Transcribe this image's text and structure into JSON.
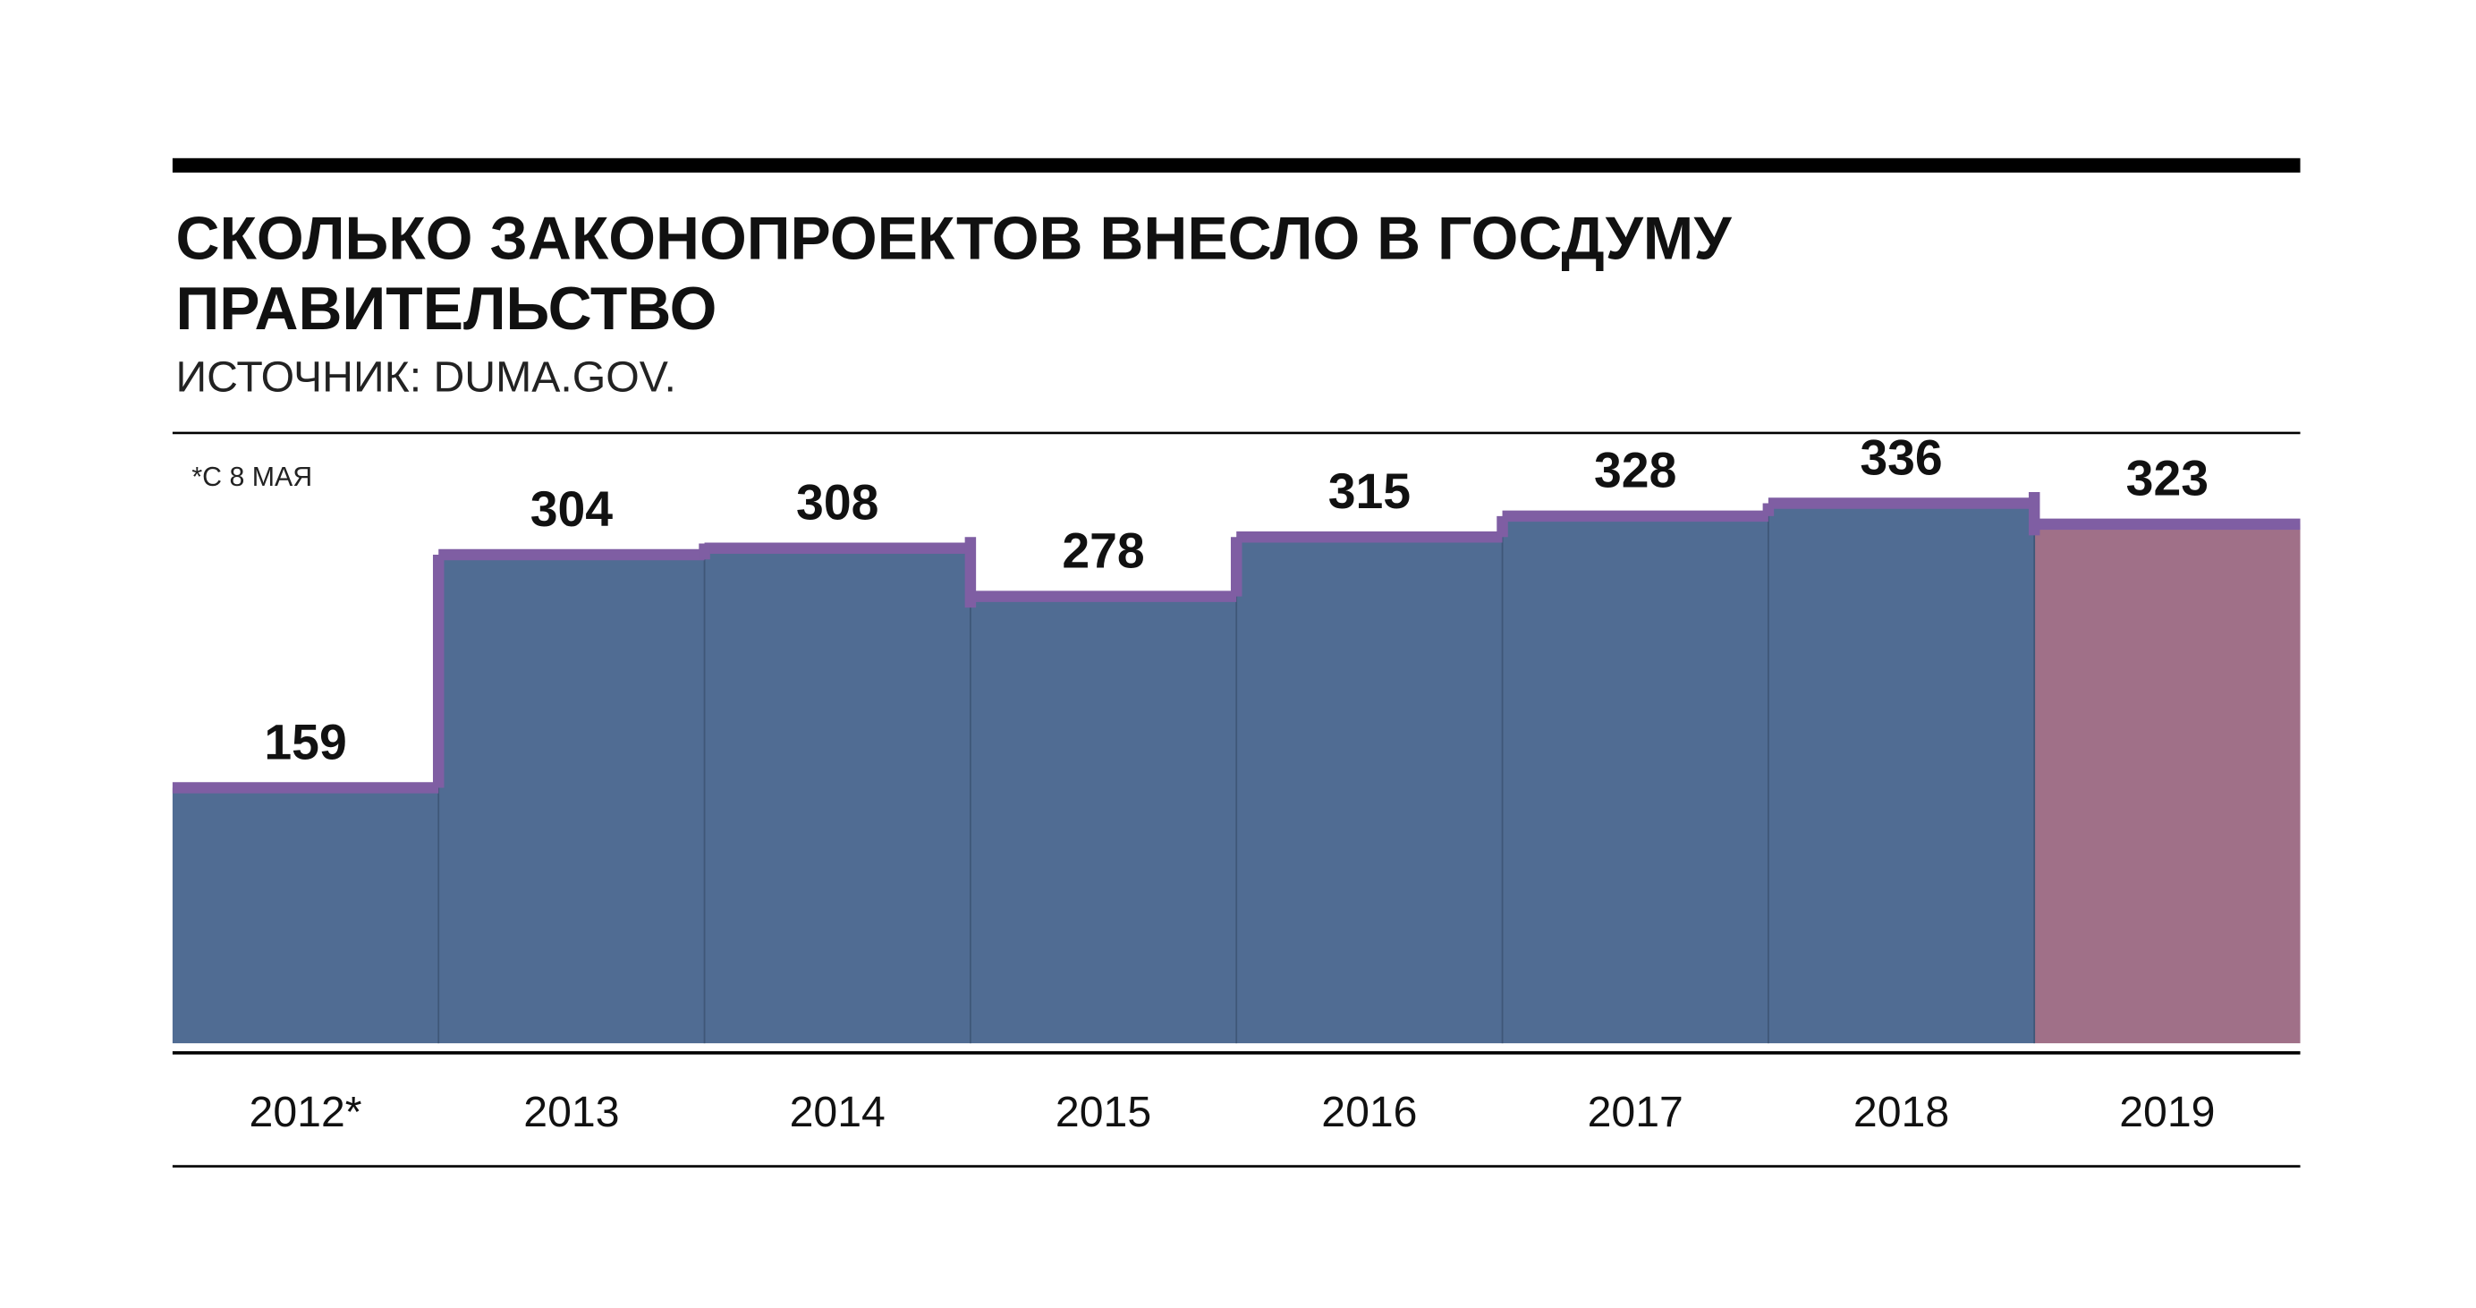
{
  "chart_data": {
    "type": "bar",
    "title": [
      "СКОЛЬКО ЗАКОНОПРОЕКТОВ ВНЕСЛО В ГОСДУМУ",
      "ПРАВИТЕЛЬСТВО"
    ],
    "subtitle": "ИСТОЧНИК: DUMA.GOV.",
    "note": "*С 8 МАЯ",
    "categories": [
      "2012*",
      "2013",
      "2014",
      "2015",
      "2016",
      "2017",
      "2018",
      "2019"
    ],
    "values": [
      159,
      304,
      308,
      278,
      315,
      328,
      336,
      323
    ],
    "colors": [
      "#506c93",
      "#506c93",
      "#506c93",
      "#506c93",
      "#506c93",
      "#506c93",
      "#506c93",
      "#a07088"
    ],
    "line_color": "#7f5ea3"
  }
}
